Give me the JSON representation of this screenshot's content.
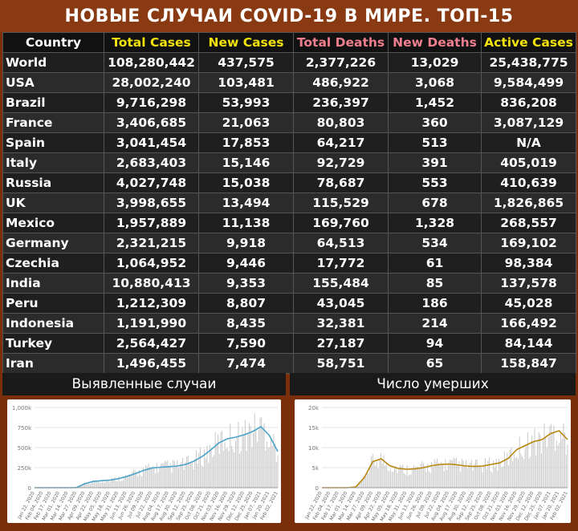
{
  "title": "НОВЫЕ СЛУЧАИ COVID-19 В МИРЕ. ТОП-15",
  "colors": {
    "country": "#ffffff",
    "total_cases": "#f2e20c",
    "new_cases": "#f2e20c",
    "total_deaths": "#ef7f8e",
    "new_deaths": "#ef7f8e",
    "active_cases": "#f2e20c"
  },
  "table": {
    "headers": [
      "Country",
      "Total Cases",
      "New Cases",
      "Total Deaths",
      "New Deaths",
      "Active Cases"
    ],
    "rows": [
      [
        "World",
        "108,280,442",
        "437,575",
        "2,377,226",
        "13,029",
        "25,438,775"
      ],
      [
        "USA",
        "28,002,240",
        "103,481",
        "486,922",
        "3,068",
        "9,584,499"
      ],
      [
        "Brazil",
        "9,716,298",
        "53,993",
        "236,397",
        "1,452",
        "836,208"
      ],
      [
        "France",
        "3,406,685",
        "21,063",
        "80,803",
        "360",
        "3,087,129"
      ],
      [
        "Spain",
        "3,041,454",
        "17,853",
        "64,217",
        "513",
        "N/A"
      ],
      [
        "Italy",
        "2,683,403",
        "15,146",
        "92,729",
        "391",
        "405,019"
      ],
      [
        "Russia",
        "4,027,748",
        "15,038",
        "78,687",
        "553",
        "410,639"
      ],
      [
        "UK",
        "3,998,655",
        "13,494",
        "115,529",
        "678",
        "1,826,865"
      ],
      [
        "Mexico",
        "1,957,889",
        "11,138",
        "169,760",
        "1,328",
        "268,557"
      ],
      [
        "Germany",
        "2,321,215",
        "9,918",
        "64,513",
        "534",
        "169,102"
      ],
      [
        "Czechia",
        "1,064,952",
        "9,446",
        "17,772",
        "61",
        "98,384"
      ],
      [
        "India",
        "10,880,413",
        "9,353",
        "155,484",
        "85",
        "137,578"
      ],
      [
        "Peru",
        "1,212,309",
        "8,807",
        "43,045",
        "186",
        "45,028"
      ],
      [
        "Indonesia",
        "1,191,990",
        "8,435",
        "32,381",
        "214",
        "166,492"
      ],
      [
        "Turkey",
        "2,564,427",
        "7,590",
        "27,187",
        "94",
        "84,144"
      ],
      [
        "Iran",
        "1,496,455",
        "7,474",
        "58,751",
        "65",
        "158,847"
      ]
    ]
  },
  "chart_data": [
    {
      "type": "bar",
      "title": "Выявленные случаи",
      "ylim": [
        0,
        1000000
      ],
      "yticks": [
        "0",
        "250k",
        "500k",
        "750k",
        "1,000k"
      ],
      "xticks": [
        "Jan 22, 2020",
        "Feb 04, 2020",
        "Feb 17, 2020",
        "Mar 01, 2020",
        "Mar 14, 2020",
        "Mar 27, 2020",
        "Apr 09, 2020",
        "Apr 22, 2020",
        "May 05, 2020",
        "May 18, 2020",
        "May 31, 2020",
        "Jun 13, 2020",
        "Jun 26, 2020",
        "Jul 09, 2020",
        "Jul 22, 2020",
        "Aug 04, 2020",
        "Aug 17, 2020",
        "Aug 30, 2020",
        "Sep 12, 2020",
        "Sep 25, 2020",
        "Oct 08, 2020",
        "Oct 21, 2020",
        "Nov 03, 2020",
        "Nov 16, 2020",
        "Nov 29, 2020",
        "Dec 12, 2020",
        "Dec 25, 2020",
        "Jan 07, 2021",
        "Jan 20, 2021",
        "Feb 02, 2021"
      ],
      "trend": [
        0,
        0,
        0,
        0,
        0,
        2000,
        50000,
        78000,
        87000,
        95000,
        112000,
        140000,
        175000,
        215000,
        245000,
        255000,
        262000,
        270000,
        290000,
        330000,
        390000,
        470000,
        560000,
        610000,
        630000,
        660000,
        700000,
        760000,
        650000,
        450000
      ],
      "line_color": "#4aa3c8",
      "bar_color": "#c9c9c9"
    },
    {
      "type": "bar",
      "title": "Число умерших",
      "ylim": [
        0,
        20000
      ],
      "yticks": [
        "0",
        "5k",
        "10k",
        "15k",
        "20k"
      ],
      "xticks": [
        "Jan 22, 2020",
        "Feb 04, 2020",
        "Feb 17, 2020",
        "Mar 01, 2020",
        "Mar 14, 2020",
        "Mar 27, 2020",
        "Apr 09, 2020",
        "Apr 22, 2020",
        "May 05, 2020",
        "May 18, 2020",
        "May 31, 2020",
        "Jun 13, 2020",
        "Jun 26, 2020",
        "Jul 09, 2020",
        "Jul 22, 2020",
        "Aug 04, 2020",
        "Aug 17, 2020",
        "Aug 30, 2020",
        "Sep 12, 2020",
        "Sep 25, 2020",
        "Oct 08, 2020",
        "Oct 21, 2020",
        "Nov 03, 2020",
        "Nov 16, 2020",
        "Nov 29, 2020",
        "Dec 12, 2020",
        "Dec 25, 2020",
        "Jan 07, 2021",
        "Jan 20, 2021",
        "Feb 02, 2021"
      ],
      "trend": [
        0,
        0,
        0,
        0,
        200,
        2500,
        6500,
        7200,
        5500,
        4800,
        4600,
        4700,
        5000,
        5500,
        5800,
        5900,
        5700,
        5400,
        5300,
        5400,
        5800,
        6200,
        7300,
        9500,
        10500,
        11500,
        12000,
        13500,
        14200,
        12000
      ],
      "line_color": "#b8860b",
      "bar_color": "#c9c9c9"
    }
  ]
}
